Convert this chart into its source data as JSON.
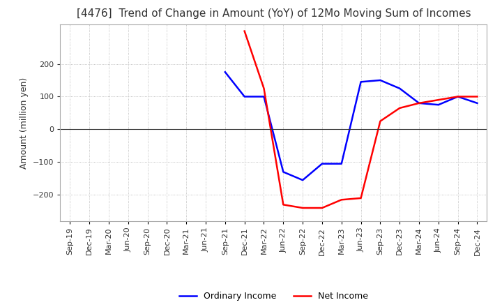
{
  "title": "[4476]  Trend of Change in Amount (YoY) of 12Mo Moving Sum of Incomes",
  "ylabel": "Amount (million yen)",
  "x_labels": [
    "Sep-19",
    "Dec-19",
    "Mar-20",
    "Jun-20",
    "Sep-20",
    "Dec-20",
    "Mar-21",
    "Jun-21",
    "Sep-21",
    "Dec-21",
    "Mar-22",
    "Jun-22",
    "Sep-22",
    "Dec-22",
    "Mar-23",
    "Jun-23",
    "Sep-23",
    "Dec-23",
    "Mar-24",
    "Jun-24",
    "Sep-24",
    "Dec-24"
  ],
  "ordinary_income": [
    null,
    null,
    null,
    null,
    null,
    null,
    null,
    null,
    175,
    100,
    100,
    -130,
    -155,
    -105,
    -105,
    145,
    150,
    125,
    80,
    75,
    100,
    80
  ],
  "net_income": [
    null,
    null,
    null,
    null,
    null,
    null,
    null,
    null,
    null,
    300,
    125,
    -230,
    -240,
    -240,
    -215,
    -210,
    25,
    65,
    80,
    90,
    100,
    100
  ],
  "ylim": [
    -280,
    320
  ],
  "yticks": [
    -200,
    -100,
    0,
    100,
    200
  ],
  "ordinary_color": "#0000ff",
  "net_color": "#ff0000",
  "grid_color": "#b0b0b0",
  "grid_style": "dotted",
  "zero_line_color": "#333333",
  "background_color": "#ffffff",
  "title_fontsize": 11,
  "title_color": "#333333",
  "axis_fontsize": 9,
  "tick_fontsize": 8,
  "legend_fontsize": 9
}
